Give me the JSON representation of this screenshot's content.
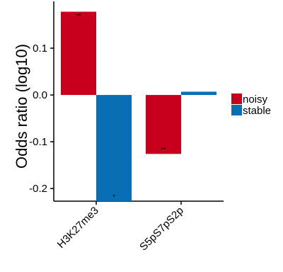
{
  "chart_data": {
    "type": "bar",
    "ylabel": "Odds ratio (log10)",
    "xlabel": "",
    "categories": [
      "H3K27me3",
      "S5pS7pS2p"
    ],
    "ylim": [
      -0.227,
      0.2
    ],
    "yticks": [
      -0.2,
      -0.1,
      0.0,
      0.1
    ],
    "ytick_labels": [
      "-0.2",
      "-0.1",
      "0.0",
      "0.1"
    ],
    "grid": false,
    "legend_position": "right",
    "series": [
      {
        "name": "noisy",
        "color": "#C8001E",
        "values": [
          0.178,
          -0.126
        ],
        "significance": [
          "**",
          "**"
        ]
      },
      {
        "name": "stable",
        "color": "#0A6EB4",
        "values": [
          -0.227,
          0.007
        ],
        "significance": [
          "*",
          ""
        ]
      }
    ]
  }
}
